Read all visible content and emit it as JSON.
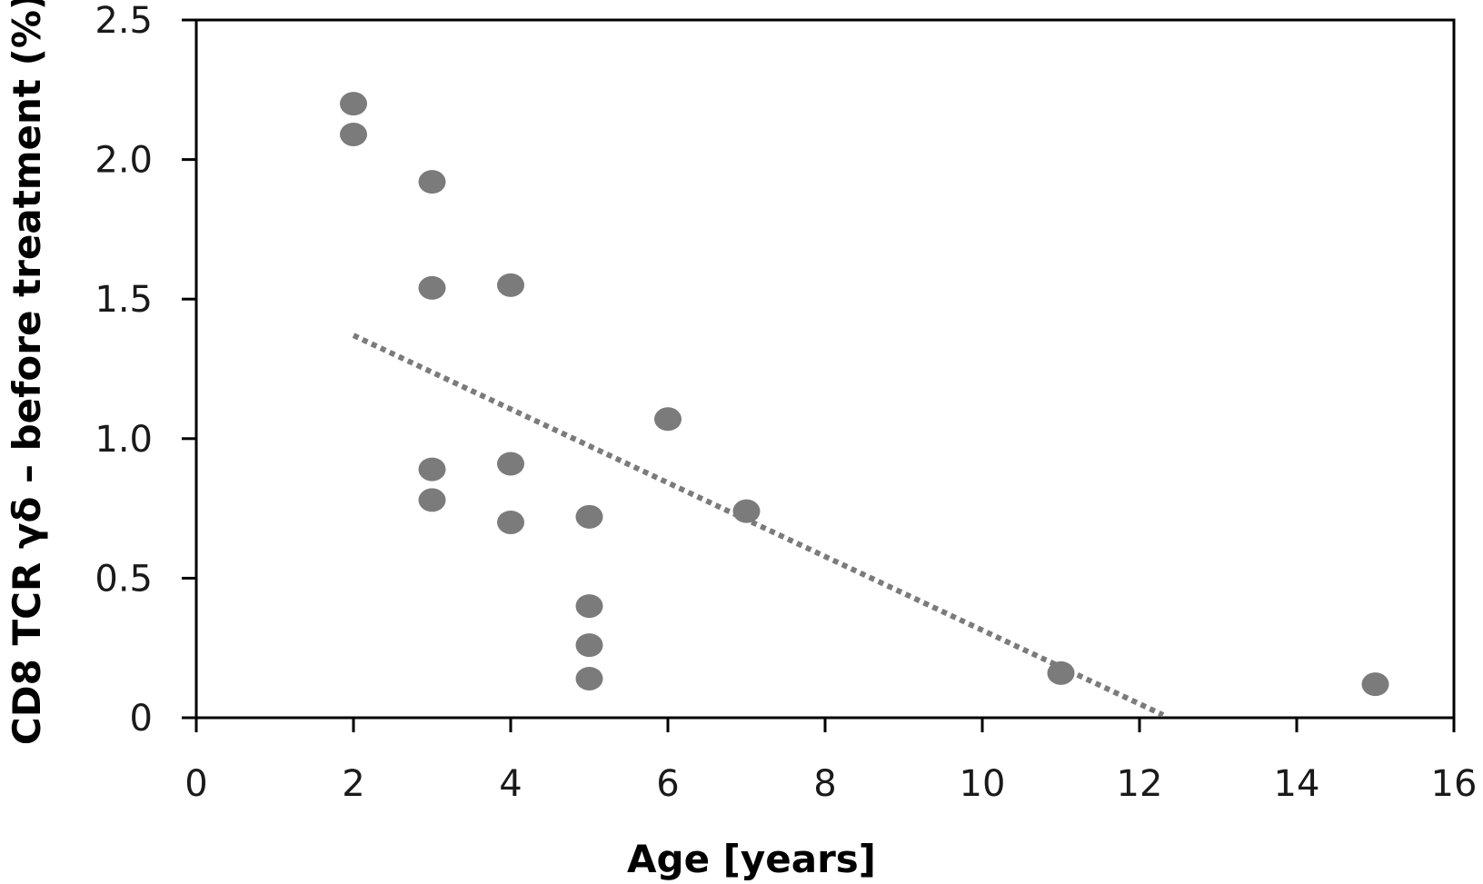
{
  "chart_data": {
    "type": "scatter",
    "title": "",
    "xlabel": "Age [years]",
    "ylabel": "CD8 TCR γδ – before treatment (%)",
    "xlim": [
      0,
      16
    ],
    "ylim": [
      0,
      2.5
    ],
    "x_ticks": [
      0,
      2,
      4,
      6,
      8,
      10,
      12,
      14,
      16
    ],
    "x_tick_labels": [
      "0",
      "2",
      "4",
      "6",
      "8",
      "10",
      "12",
      "14",
      "16"
    ],
    "y_ticks": [
      0,
      0.5,
      1.0,
      1.5,
      2.0,
      2.5
    ],
    "y_tick_labels": [
      "0",
      "0.5",
      "1.0",
      "1.5",
      "2.0",
      "2.5"
    ],
    "grid": false,
    "point_color": "#7b7b7b",
    "trendline_color": "#7b7b7b",
    "trendline_style": "dotted",
    "points": [
      {
        "x": 2,
        "y": 2.2
      },
      {
        "x": 2,
        "y": 2.09
      },
      {
        "x": 3,
        "y": 1.92
      },
      {
        "x": 3,
        "y": 1.54
      },
      {
        "x": 3,
        "y": 0.89
      },
      {
        "x": 3,
        "y": 0.78
      },
      {
        "x": 4,
        "y": 1.55
      },
      {
        "x": 4,
        "y": 0.91
      },
      {
        "x": 4,
        "y": 0.7
      },
      {
        "x": 5,
        "y": 0.72
      },
      {
        "x": 5,
        "y": 0.4
      },
      {
        "x": 5,
        "y": 0.26
      },
      {
        "x": 5,
        "y": 0.14
      },
      {
        "x": 6,
        "y": 1.07
      },
      {
        "x": 7,
        "y": 0.74
      },
      {
        "x": 11,
        "y": 0.16
      },
      {
        "x": 15,
        "y": 0.12
      }
    ],
    "trendline": {
      "x": [
        2,
        12.3
      ],
      "y": [
        1.37,
        0.01
      ]
    }
  }
}
